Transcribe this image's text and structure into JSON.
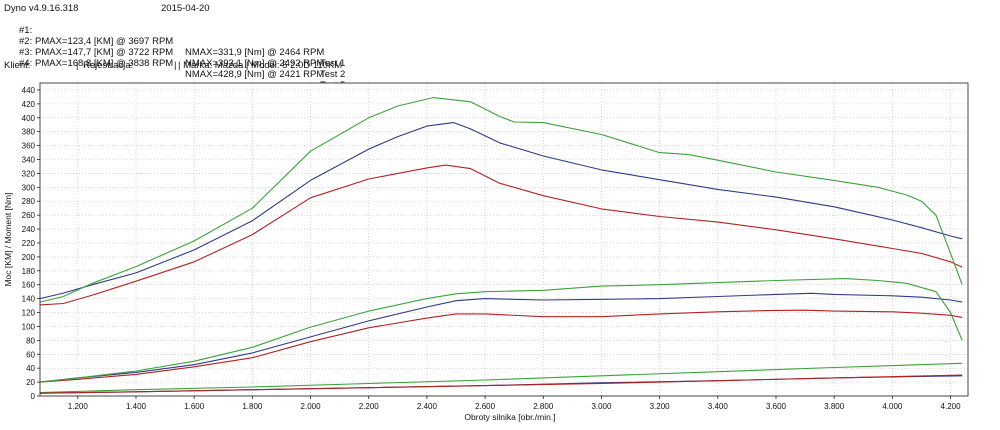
{
  "header": {
    "app_title": "Dyno v4.9.16.318",
    "date": "2015-04-20",
    "runs": [
      {
        "id": "#1:",
        "pmax": "PMAX=123,4 [KM] @ 3697 RPM",
        "nmax": "NMAX=331,9 [Nm] @ 2464 RPM",
        "test": "Test 1"
      },
      {
        "id": "#2:",
        "pmax": "PMAX=147,7 [KM] @ 3722 RPM",
        "nmax": "NMAX=393,1 [Nm] @ 2492 RPM",
        "test": "Test 2"
      },
      {
        "id": "#3:",
        "pmax": "PMAX=168,8 [KM] @ 3838 RPM",
        "nmax": "NMAX=428,9 [Nm] @ 2421 RPM",
        "test": "Test 5"
      },
      {
        "id": "#4:",
        "pmax": "",
        "nmax": "",
        "test": ""
      }
    ],
    "client_label": "Klient:",
    "separator1": "|",
    "registration_label": "Rejestracja:",
    "separator2": "|",
    "make_model": "| Marka: Mazda | Model: 5 2.0D 110KM"
  },
  "chart_data": {
    "type": "line",
    "xlabel": "Obroty silnika [obr./min.]",
    "ylabel": "Moc [KM] / Moment [Nm]",
    "xlim": [
      1070,
      4260
    ],
    "ylim": [
      0,
      450
    ],
    "x_ticks": [
      1200,
      1400,
      1600,
      1800,
      2000,
      2200,
      2400,
      2600,
      2800,
      3000,
      3200,
      3400,
      3600,
      3800,
      4000,
      4200
    ],
    "x_tick_labels": [
      "1.200",
      "1.400",
      "1.600",
      "1.800",
      "2.000",
      "2.200",
      "2.400",
      "2.600",
      "2.800",
      "3.000",
      "3.200",
      "3.400",
      "3.600",
      "3.800",
      "4.000",
      "4.200"
    ],
    "y_ticks": [
      0,
      20,
      40,
      60,
      80,
      100,
      120,
      140,
      160,
      180,
      200,
      220,
      240,
      260,
      280,
      300,
      320,
      340,
      360,
      380,
      400,
      420,
      440
    ],
    "grid": true,
    "series": [
      {
        "kind": "torque",
        "color": "#b22222",
        "x": [
          1070,
          1150,
          1250,
          1400,
          1600,
          1800,
          2000,
          2200,
          2300,
          2400,
          2464,
          2550,
          2650,
          2800,
          3000,
          3200,
          3400,
          3600,
          3800,
          4000,
          4100,
          4200,
          4240
        ],
        "y": [
          131,
          133,
          145,
          165,
          193,
          232,
          285,
          312,
          320,
          328,
          332,
          327,
          306,
          288,
          269,
          258,
          250,
          239,
          226,
          212,
          205,
          193,
          185
        ]
      },
      {
        "kind": "torque",
        "color": "#2f3a8a",
        "x": [
          1070,
          1150,
          1250,
          1400,
          1600,
          1800,
          2000,
          2200,
          2300,
          2400,
          2492,
          2550,
          2650,
          2800,
          3000,
          3200,
          3400,
          3600,
          3800,
          4000,
          4100,
          4200,
          4240
        ],
        "y": [
          140,
          148,
          160,
          177,
          210,
          252,
          310,
          355,
          373,
          388,
          393,
          384,
          364,
          345,
          325,
          311,
          297,
          286,
          272,
          253,
          242,
          230,
          226
        ]
      },
      {
        "kind": "torque",
        "color": "#3aa23a",
        "x": [
          1070,
          1150,
          1250,
          1400,
          1600,
          1800,
          2000,
          2200,
          2300,
          2421,
          2550,
          2650,
          2700,
          2800,
          3000,
          3200,
          3300,
          3400,
          3600,
          3800,
          3950,
          4050,
          4100,
          4150,
          4200,
          4240
        ],
        "y": [
          135,
          143,
          162,
          186,
          223,
          270,
          352,
          400,
          417,
          429,
          423,
          402,
          394,
          393,
          376,
          350,
          347,
          339,
          322,
          310,
          300,
          289,
          280,
          260,
          205,
          160
        ]
      },
      {
        "kind": "power",
        "color": "#b22222",
        "x": [
          1070,
          1200,
          1400,
          1600,
          1800,
          2000,
          2200,
          2400,
          2500,
          2600,
          2800,
          3000,
          3200,
          3400,
          3600,
          3697,
          3800,
          4000,
          4100,
          4200,
          4240
        ],
        "y": [
          20,
          24,
          31,
          42,
          55,
          78,
          98,
          112,
          118,
          118,
          114,
          114,
          118,
          121,
          123,
          123.4,
          122,
          121,
          119,
          116,
          113
        ]
      },
      {
        "kind": "power",
        "color": "#2f3a8a",
        "x": [
          1070,
          1200,
          1400,
          1600,
          1800,
          2000,
          2200,
          2400,
          2500,
          2600,
          2800,
          3000,
          3200,
          3400,
          3600,
          3722,
          3800,
          4000,
          4100,
          4200,
          4240
        ],
        "y": [
          20,
          26,
          34,
          45,
          62,
          85,
          108,
          128,
          137,
          140,
          138,
          139,
          140,
          143,
          146,
          147.7,
          146,
          144,
          142,
          138,
          135
        ]
      },
      {
        "kind": "power",
        "color": "#3aa23a",
        "x": [
          1070,
          1200,
          1400,
          1600,
          1800,
          2000,
          2200,
          2400,
          2500,
          2600,
          2800,
          3000,
          3200,
          3400,
          3600,
          3838,
          3950,
          4050,
          4150,
          4200,
          4240
        ],
        "y": [
          20,
          26,
          36,
          50,
          70,
          99,
          122,
          140,
          147,
          150,
          152,
          158,
          160,
          163,
          166,
          168.8,
          166,
          162,
          150,
          120,
          80
        ]
      },
      {
        "kind": "loss",
        "color": "#3aa23a",
        "x": [
          1070,
          1400,
          1800,
          2200,
          2600,
          3000,
          3400,
          3800,
          4240
        ],
        "y": [
          5,
          9,
          13,
          18,
          23,
          29,
          35,
          41,
          47
        ]
      },
      {
        "kind": "loss",
        "color": "#2f3a8a",
        "x": [
          1070,
          1400,
          1800,
          2200,
          2600,
          3000,
          3400,
          3800,
          4240
        ],
        "y": [
          4,
          6,
          9,
          12,
          15,
          19,
          22,
          26,
          29
        ]
      },
      {
        "kind": "loss",
        "color": "#b22222",
        "x": [
          1070,
          1400,
          1800,
          2200,
          2600,
          3000,
          3400,
          3800,
          4240
        ],
        "y": [
          4,
          6,
          9,
          12,
          15,
          18,
          22,
          26,
          30
        ]
      }
    ]
  }
}
